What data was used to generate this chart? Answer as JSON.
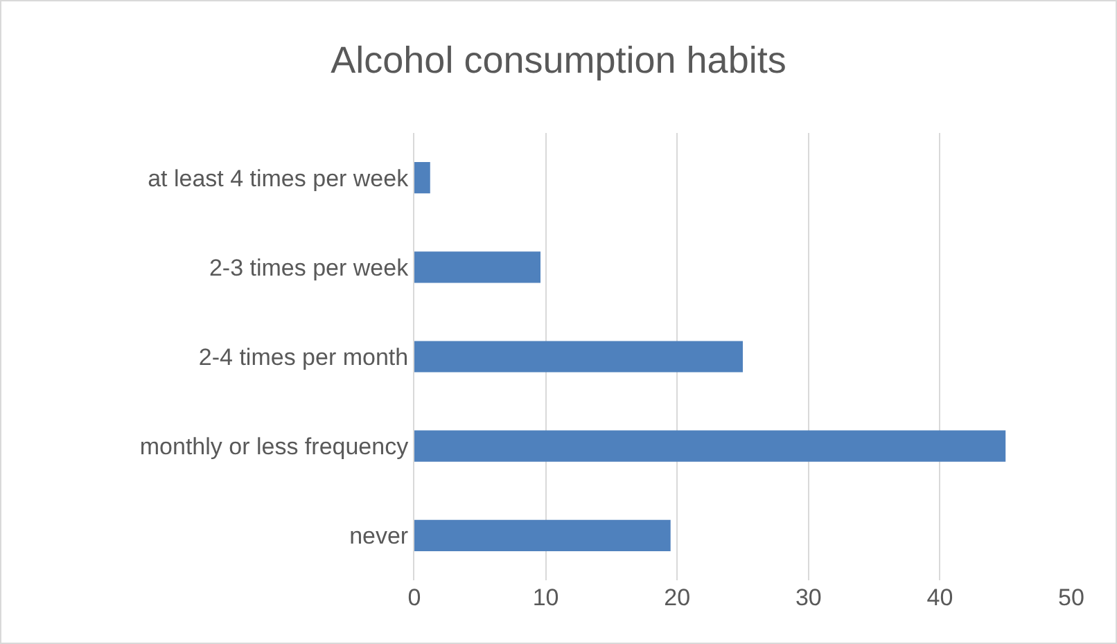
{
  "chart_data": {
    "type": "bar",
    "orientation": "horizontal",
    "title": "Alcohol consumption habits",
    "categories": [
      "at least 4 times per week",
      "2-3 times per week",
      "2-4 times per month",
      "monthly or less frequency",
      "never"
    ],
    "values": [
      1.2,
      9.6,
      25,
      45,
      19.5
    ],
    "color": "#4f81bd",
    "xlim": [
      0,
      50
    ],
    "xticks": [
      0,
      10,
      20,
      30,
      40,
      50
    ],
    "grid": "x",
    "legend": false
  }
}
